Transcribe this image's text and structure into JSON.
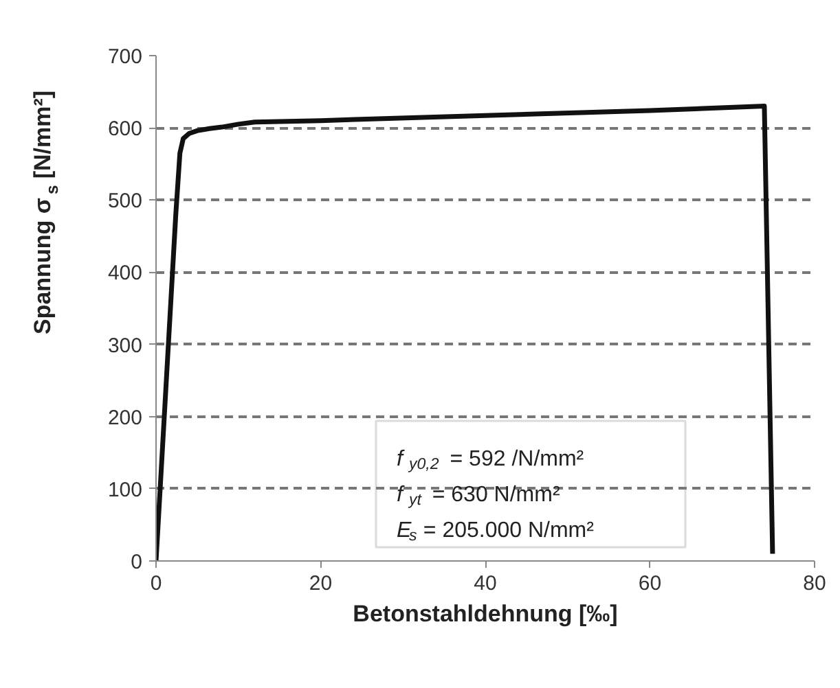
{
  "chart_data": {
    "type": "line",
    "xlabel": "Betonstahldehnung [‰]",
    "ylabel": "Spannung σ$_{s}$ [N/mm²]",
    "x": [
      0,
      1.2,
      2.4,
      2.9,
      3.3,
      4,
      5,
      6.5,
      8,
      10,
      12,
      20,
      40,
      60,
      73.9,
      74.9
    ],
    "series": [
      {
        "color": "#111111",
        "values": [
          0,
          240,
          480,
          565,
          585,
          592,
          596,
          599,
          601,
          605,
          608,
          610,
          617,
          624,
          630,
          10
        ]
      }
    ],
    "xlim": [
      0,
      80
    ],
    "ylim": [
      0,
      700
    ],
    "xticks": [
      0,
      20,
      40,
      60,
      80
    ],
    "yticks": [
      0,
      100,
      200,
      300,
      400,
      500,
      600,
      700
    ],
    "grid": "y",
    "marker": "none",
    "line_style": "solid",
    "annotations": [
      "f$_{y0,2}$ = 592 /N/mm²",
      "f$_{yt}$   = 630 N/mm²",
      "E$_{s}$  = 205.000 N/mm²"
    ]
  }
}
